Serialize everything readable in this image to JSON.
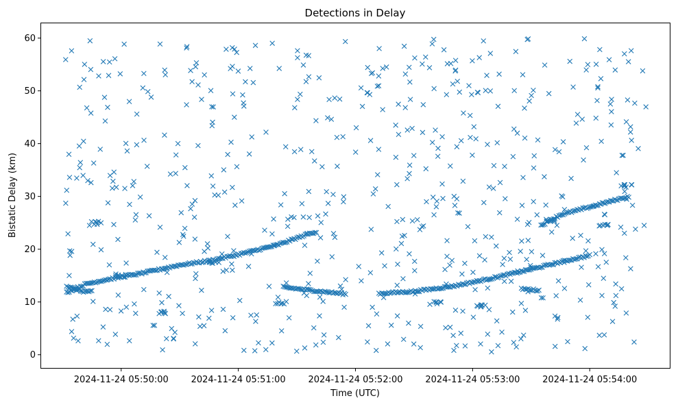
{
  "chart_data": {
    "type": "scatter",
    "title": "Detections in Delay",
    "xlabel": "Time (UTC)",
    "ylabel": "Bistatic Delay (km)",
    "marker": "x",
    "color": "#1f77b4",
    "grid": false,
    "legend": "none",
    "x_date": "2024-11-24",
    "xlim": [
      "05:49:19",
      "05:54:41"
    ],
    "ylim": [
      -2.5,
      62.8
    ],
    "xticks": [
      "2024-11-24 05:50:00",
      "2024-11-24 05:51:00",
      "2024-11-24 05:52:00",
      "2024-11-24 05:53:00",
      "2024-11-24 05:54:00"
    ],
    "yticks": [
      "0",
      "10",
      "20",
      "30",
      "40",
      "50",
      "60"
    ],
    "tracks": [
      {
        "x": [
          "05:49:32",
          "05:49:42",
          "05:49:52",
          "05:50:10",
          "05:50:30",
          "05:50:45",
          "05:50:58",
          "05:51:20",
          "05:51:36",
          "05:51:40"
        ],
        "y": [
          11.8,
          13.4,
          14.2,
          15.4,
          17.0,
          17.8,
          18.8,
          20.8,
          22.9,
          23.3
        ]
      },
      {
        "x": [
          "05:49:32",
          "05:49:40",
          "05:49:45"
        ],
        "y": [
          13.0,
          12.0,
          12.0
        ]
      },
      {
        "x": [
          "05:51:23",
          "05:51:35",
          "05:51:45",
          "05:51:55"
        ],
        "y": [
          12.8,
          12.3,
          11.9,
          11.5
        ]
      },
      {
        "x": [
          "05:52:12",
          "05:52:30",
          "05:52:50",
          "05:53:10",
          "05:53:30",
          "05:53:50",
          "05:54:00"
        ],
        "y": [
          11.6,
          12.0,
          13.0,
          14.5,
          16.2,
          18.0,
          18.8
        ]
      },
      {
        "x": [
          "05:53:25",
          "05:53:34"
        ],
        "y": [
          12.5,
          12.2
        ]
      },
      {
        "x": [
          "05:53:35",
          "05:53:45",
          "05:54:00",
          "05:54:20"
        ],
        "y": [
          24.5,
          26.5,
          28.0,
          30.0
        ]
      }
    ],
    "clusters": [
      {
        "x": "05:49:47",
        "y": 25.0
      },
      {
        "x": "05:50:00",
        "y": 15.0
      },
      {
        "x": "05:50:22",
        "y": 8.0
      },
      {
        "x": "05:50:48",
        "y": 17.5
      },
      {
        "x": "05:51:22",
        "y": 9.8
      },
      {
        "x": "05:52:41",
        "y": 9.8
      },
      {
        "x": "05:53:04",
        "y": 9.2
      },
      {
        "x": "05:53:40",
        "y": 25.5
      },
      {
        "x": "05:54:07",
        "y": 24.5
      },
      {
        "x": "05:54:19",
        "y": 32.0
      }
    ],
    "noise_points": 620,
    "noise_y_range": [
      0.5,
      60
    ],
    "noise_gap": [
      "05:51:55",
      "05:52:00"
    ]
  }
}
